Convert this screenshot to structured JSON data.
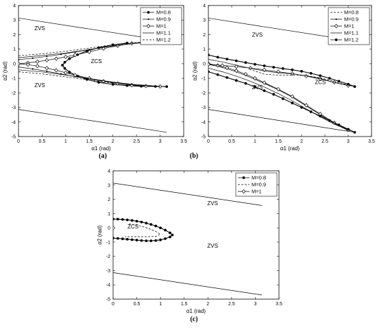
{
  "chart_data": [
    {
      "panel": "a",
      "type": "line",
      "caption": "(a)",
      "xlabel": "α1 (rad)",
      "ylabel": "α2 (rad)",
      "xlim": [
        0,
        3.5
      ],
      "ylim": [
        -5,
        4
      ],
      "xticks": [
        0,
        0.5,
        1,
        1.5,
        2,
        2.5,
        3,
        3.5
      ],
      "yticks": [
        -5,
        -4,
        -3,
        -2,
        -1,
        0,
        1,
        2,
        3,
        4
      ],
      "grid": false,
      "legend_position": "top-right",
      "region_labels": [
        {
          "text": "ZVS",
          "x": 0.45,
          "y": 2.3
        },
        {
          "text": "ZCS",
          "x": 1.65,
          "y": 0.05
        },
        {
          "text": "ZVS",
          "x": 0.45,
          "y": -1.6
        }
      ],
      "boundaries": [
        {
          "x": [
            0,
            3.14
          ],
          "y": [
            3.14,
            1.57
          ]
        },
        {
          "x": [
            0,
            3.14
          ],
          "y": [
            -3.14,
            -4.71
          ]
        }
      ],
      "series": [
        {
          "name": "M=0.8",
          "marker": "star",
          "dash": "solid",
          "x": [
            2.3,
            2.0,
            1.7,
            1.45,
            1.25,
            1.08,
            0.98,
            0.93,
            0.98,
            1.08,
            1.25,
            1.45,
            1.7,
            2.0,
            2.3,
            2.6,
            2.9,
            3.14
          ],
          "y": [
            1.42,
            1.3,
            1.1,
            0.88,
            0.62,
            0.35,
            0.1,
            -0.1,
            -0.32,
            -0.58,
            -0.85,
            -1.08,
            -1.28,
            -1.42,
            -1.5,
            -1.55,
            -1.56,
            -1.57
          ]
        },
        {
          "name": "M=0.9",
          "marker": "dot",
          "dash": "solid",
          "x": [
            0,
            0.3,
            0.6,
            0.9,
            1.2,
            1.5,
            1.8,
            2.1,
            2.4,
            2.7,
            3.0
          ],
          "y": [
            0.28,
            0.38,
            0.5,
            0.64,
            0.8,
            0.97,
            1.13,
            1.27,
            1.39,
            1.47,
            1.52
          ]
        },
        {
          "name": "M=0.9",
          "marker": "dot",
          "dash": "solid",
          "x": [
            0,
            0.3,
            0.6,
            0.9,
            1.2,
            1.5,
            1.8,
            2.1,
            2.4,
            2.7,
            3.14
          ],
          "y": [
            -0.22,
            -0.36,
            -0.52,
            -0.7,
            -0.88,
            -1.05,
            -1.2,
            -1.34,
            -1.45,
            -1.52,
            -1.57
          ]
        },
        {
          "name": "M=1",
          "marker": "diamond",
          "dash": "solid",
          "x": [
            0,
            0.2,
            0.4,
            0.6,
            0.8,
            1.0,
            1.2,
            1.5,
            1.8,
            2.1,
            2.4,
            2.7
          ],
          "y": [
            0,
            0.06,
            0.14,
            0.24,
            0.35,
            0.47,
            0.6,
            0.82,
            1.04,
            1.24,
            1.4,
            1.5
          ]
        },
        {
          "name": "M=1",
          "marker": "diamond",
          "dash": "solid",
          "x": [
            0,
            0.2,
            0.4,
            0.6,
            0.8,
            1.0,
            1.2,
            1.5,
            1.8,
            2.1,
            2.4,
            2.7,
            3.0
          ],
          "y": [
            0,
            -0.06,
            -0.16,
            -0.3,
            -0.45,
            -0.62,
            -0.78,
            -1.0,
            -1.2,
            -1.36,
            -1.47,
            -1.53,
            -1.56
          ]
        },
        {
          "name": "M=1.1",
          "marker": "none",
          "dash": "solid",
          "x": [
            0,
            0.5,
            1.0,
            1.5,
            2.0,
            2.5,
            3.0
          ],
          "y": [
            0.42,
            0.56,
            0.74,
            0.98,
            1.22,
            1.41,
            1.52
          ]
        },
        {
          "name": "M=1.1",
          "marker": "none",
          "dash": "solid",
          "x": [
            0,
            0.5,
            1.0,
            1.5,
            2.0,
            2.5,
            3.0
          ],
          "y": [
            -0.42,
            -0.56,
            -0.78,
            -1.02,
            -1.26,
            -1.44,
            -1.55
          ]
        },
        {
          "name": "M=1.2",
          "marker": "none",
          "dash": "dashed",
          "x": [
            0,
            0.5,
            1.0,
            1.5,
            2.0,
            2.5,
            3.0
          ],
          "y": [
            0.55,
            0.68,
            0.86,
            1.08,
            1.3,
            1.46,
            1.54
          ]
        },
        {
          "name": "M=1.2",
          "marker": "none",
          "dash": "dashed",
          "x": [
            0,
            0.5,
            1.0,
            1.5,
            2.0,
            2.5,
            3.0
          ],
          "y": [
            -0.55,
            -0.7,
            -0.9,
            -1.12,
            -1.33,
            -1.48,
            -1.56
          ]
        }
      ],
      "legend": [
        "M=0.8",
        "M=0.9",
        "M=1",
        "M=1.1",
        "M=1.2"
      ]
    },
    {
      "panel": "b",
      "type": "line",
      "caption": "(b)",
      "xlabel": "α1 (rad)",
      "ylabel": "α2 (rad)",
      "xlim": [
        0,
        3.5
      ],
      "ylim": [
        -5,
        4
      ],
      "xticks": [
        0,
        0.5,
        1,
        1.5,
        2,
        2.5,
        3,
        3.5
      ],
      "yticks": [
        -5,
        -4,
        -3,
        -2,
        -1,
        0,
        1,
        2,
        3,
        4
      ],
      "grid": false,
      "legend_position": "top-right",
      "region_labels": [
        {
          "text": "ZVS",
          "x": 1.05,
          "y": 1.85
        },
        {
          "text": "ZCS",
          "x": 2.4,
          "y": -1.4
        },
        {
          "text": "ZVS",
          "x": 1.05,
          "y": -1.75
        }
      ],
      "boundaries": [
        {
          "x": [
            0,
            3.14
          ],
          "y": [
            3.14,
            1.57
          ]
        },
        {
          "x": [
            0,
            3.14
          ],
          "y": [
            -3.14,
            -4.71
          ]
        }
      ],
      "series": [
        {
          "name": "M=0.8",
          "marker": "none",
          "dash": "dashed",
          "x": [
            0.95,
            1.2,
            1.5,
            1.8,
            2.1,
            2.4,
            2.7,
            3.0,
            3.14
          ],
          "y": [
            -0.45,
            -0.72,
            -0.78,
            -0.78,
            -0.82,
            -0.96,
            -1.2,
            -1.45,
            -1.57
          ]
        },
        {
          "name": "M=0.9",
          "marker": "dot",
          "dash": "solid",
          "x": [
            0,
            0.2,
            0.4,
            0.6,
            0.8,
            1.0,
            1.2,
            1.5,
            1.8,
            2.1,
            2.4,
            2.7,
            3.0
          ],
          "y": [
            -0.05,
            -0.18,
            -0.35,
            -0.55,
            -0.8,
            -1.08,
            -1.35,
            -1.8,
            -2.3,
            -2.9,
            -3.5,
            -4.1,
            -4.6
          ]
        },
        {
          "name": "M=1",
          "marker": "diamond",
          "dash": "solid",
          "x": [
            0,
            0.2,
            0.4,
            0.6,
            0.8,
            1.0,
            1.2,
            1.5,
            1.8,
            2.1,
            2.4,
            2.7,
            3.0
          ],
          "y": [
            0,
            -0.12,
            -0.28,
            -0.48,
            -0.72,
            -1.0,
            -1.3,
            -1.75,
            -2.25,
            -2.85,
            -3.45,
            -4.05,
            -4.55
          ]
        },
        {
          "name": "M=1",
          "marker": "diamond",
          "dash": "solid",
          "x": [
            0,
            0.3,
            0.6,
            0.9,
            1.2,
            1.5,
            1.8,
            2.1,
            2.4,
            2.7,
            3.0
          ],
          "y": [
            -0.05,
            -0.12,
            -0.2,
            -0.3,
            -0.42,
            -0.55,
            -0.68,
            -0.85,
            -1.05,
            -1.28,
            -1.5
          ]
        },
        {
          "name": "M=1.1",
          "marker": "none",
          "dash": "solid",
          "x": [
            0,
            0.3,
            0.6,
            0.9,
            1.2,
            1.5,
            1.8,
            2.1,
            2.4,
            2.7,
            3.14
          ],
          "y": [
            0.3,
            0.12,
            -0.1,
            -0.32,
            -0.5,
            -0.62,
            -0.7,
            -0.82,
            -1.02,
            -1.28,
            -1.57
          ]
        },
        {
          "name": "M=1.1",
          "marker": "none",
          "dash": "solid",
          "x": [
            0,
            0.3,
            0.6,
            0.9,
            1.2,
            1.5,
            1.8,
            2.1,
            2.4,
            2.7,
            3.14
          ],
          "y": [
            -0.3,
            -0.55,
            -0.85,
            -1.2,
            -1.6,
            -2.05,
            -2.55,
            -3.1,
            -3.65,
            -4.15,
            -4.71
          ]
        },
        {
          "name": "M=1.2",
          "marker": "star",
          "dash": "solid",
          "x": [
            0,
            0.2,
            0.4,
            0.6,
            0.8,
            1.0,
            1.2,
            1.4,
            1.6,
            1.8,
            2.0,
            2.2,
            2.4,
            2.6,
            2.8,
            3.0,
            3.14
          ],
          "y": [
            0.6,
            0.45,
            0.32,
            0.2,
            0.08,
            -0.04,
            -0.14,
            -0.24,
            -0.33,
            -0.42,
            -0.52,
            -0.66,
            -0.82,
            -1.0,
            -1.2,
            -1.4,
            -1.57
          ]
        },
        {
          "name": "M=1.2",
          "marker": "star",
          "dash": "solid",
          "x": [
            0,
            0.2,
            0.4,
            0.6,
            0.8,
            1.0,
            1.2,
            1.4,
            1.6,
            1.8,
            2.0,
            2.2,
            2.4,
            2.6,
            2.8,
            3.0,
            3.14
          ],
          "y": [
            -0.55,
            -0.75,
            -0.95,
            -1.15,
            -1.35,
            -1.6,
            -1.85,
            -2.1,
            -2.4,
            -2.7,
            -3.0,
            -3.3,
            -3.6,
            -3.9,
            -4.2,
            -4.5,
            -4.71
          ]
        }
      ],
      "legend": [
        "M=0.8",
        "M=0.9",
        "M=1",
        "M=1.1",
        "M=1.2"
      ]
    },
    {
      "panel": "c",
      "type": "line",
      "caption": "(c)",
      "xlabel": "α1 (rad)",
      "ylabel": "α2 (rad)",
      "xlim": [
        0,
        3.5
      ],
      "ylim": [
        -5,
        4
      ],
      "xticks": [
        0,
        0.5,
        1,
        1.5,
        2,
        2.5,
        3,
        3.5
      ],
      "yticks": [
        -5,
        -4,
        -3,
        -2,
        -1,
        0,
        1,
        2,
        3,
        4
      ],
      "grid": false,
      "legend_position": "top-right",
      "region_labels": [
        {
          "text": "ZVS",
          "x": 2.1,
          "y": 1.6
        },
        {
          "text": "ZCS",
          "x": 0.42,
          "y": -0.05
        },
        {
          "text": "ZVS",
          "x": 2.1,
          "y": -1.4
        }
      ],
      "boundaries": [
        {
          "x": [
            0,
            3.14
          ],
          "y": [
            3.14,
            1.57
          ]
        },
        {
          "x": [
            0,
            3.14
          ],
          "y": [
            -3.14,
            -4.71
          ]
        }
      ],
      "series": [
        {
          "name": "M=0.8",
          "marker": "star",
          "dash": "solid",
          "x": [
            0,
            0.1,
            0.2,
            0.3,
            0.4,
            0.5,
            0.6,
            0.7,
            0.8,
            0.9,
            1.0,
            1.1,
            1.2,
            1.25,
            1.2,
            1.1,
            1.0,
            0.9,
            0.8,
            0.7,
            0.6,
            0.5,
            0.4,
            0.3,
            0.2,
            0.1,
            0
          ],
          "y": [
            0.62,
            0.61,
            0.59,
            0.56,
            0.52,
            0.47,
            0.41,
            0.33,
            0.24,
            0.13,
            0,
            -0.16,
            -0.35,
            -0.5,
            -0.64,
            -0.76,
            -0.84,
            -0.89,
            -0.91,
            -0.91,
            -0.89,
            -0.86,
            -0.83,
            -0.8,
            -0.77,
            -0.74,
            -0.72
          ]
        },
        {
          "name": "M=0.9",
          "marker": "none",
          "dash": "dashed",
          "x": [
            0.33,
            0.5,
            0.7,
            0.9,
            1.0,
            0.9,
            0.7,
            0.5,
            0.35,
            0.25
          ],
          "y": [
            0.28,
            0.2,
            0.02,
            -0.25,
            -0.45,
            -0.6,
            -0.62,
            -0.62,
            -0.62,
            -0.62
          ]
        },
        {
          "name": "M=1",
          "marker": "diamond",
          "dash": "solid",
          "x": [
            0
          ],
          "y": [
            0
          ]
        }
      ],
      "legend": [
        "M=0.8",
        "M=0.9",
        "M=1"
      ]
    }
  ]
}
